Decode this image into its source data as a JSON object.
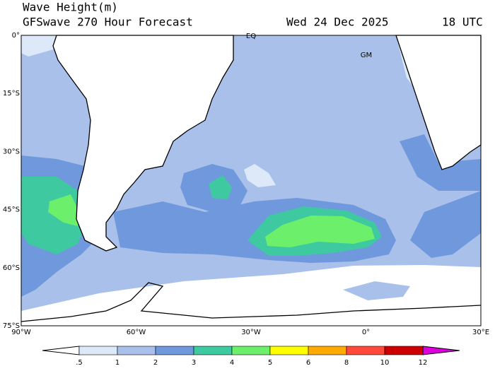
{
  "header": {
    "title": "Wave Height(m)",
    "subtitle": "GFSwave 270 Hour Forecast",
    "date": "Wed 24 Dec 2025",
    "time": "18 UTC"
  },
  "map": {
    "lat_labels": [
      "0°",
      "15°S",
      "30°S",
      "45°S",
      "60°S",
      "75°S"
    ],
    "lon_labels": [
      "90°W",
      "60°W",
      "30°W",
      "0°",
      "30°E"
    ],
    "annotations": [
      "EQ",
      "GM"
    ]
  },
  "colorbar": {
    "ticks": [
      {
        "value": 0.5,
        "label": ".5"
      },
      1,
      2,
      3,
      4,
      5,
      6,
      8,
      10,
      12
    ],
    "colors": [
      "#ffffff",
      "#dde9f8",
      "#a9c1ea",
      "#6f98dd",
      "#3fc9a0",
      "#6cf06c",
      "#ffff00",
      "#ffaa00",
      "#ff4a3a",
      "#cc0000",
      "#dd00dd"
    ]
  }
}
